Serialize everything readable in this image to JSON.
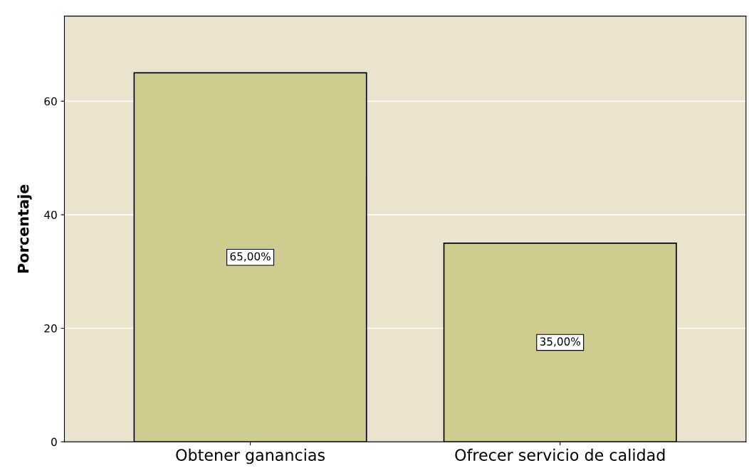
{
  "chart_data": {
    "type": "bar",
    "ylabel": "Porcentaje",
    "categories": [
      "Obtener ganancias",
      "Ofrecer servicio de calidad"
    ],
    "values": [
      65,
      35
    ],
    "value_labels": [
      "65,00%",
      "35,00%"
    ],
    "color": "#d0cb8f",
    "ylim": [
      0,
      75
    ],
    "yticks": [
      0,
      20,
      40,
      60
    ],
    "grid": "y",
    "legend": false
  }
}
